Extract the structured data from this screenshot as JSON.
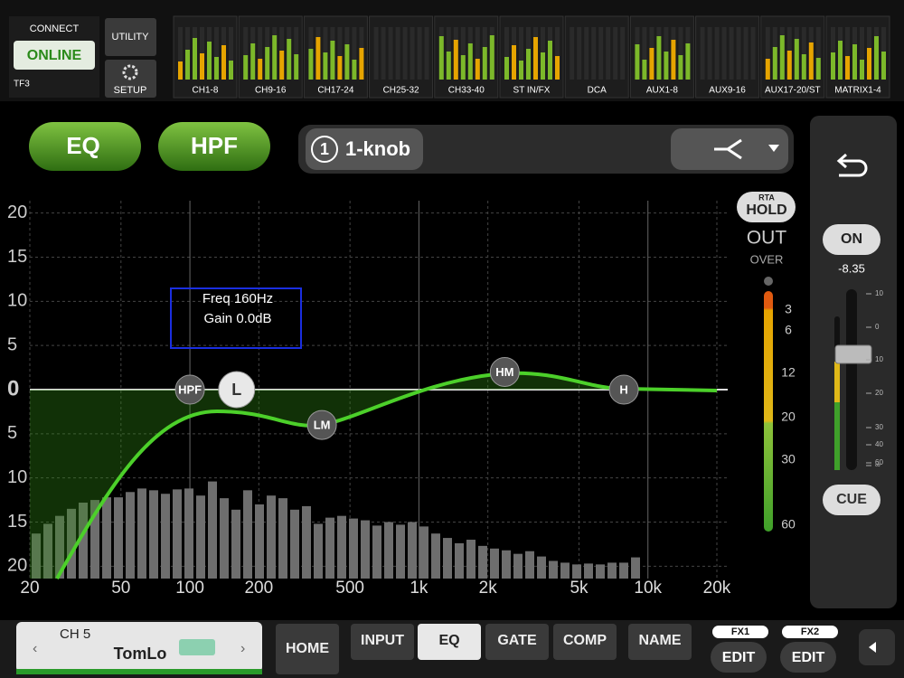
{
  "connect": {
    "label": "CONNECT",
    "status": "ONLINE",
    "device": "TF3"
  },
  "buttons": {
    "utility": "UTILITY",
    "setup": "SETUP"
  },
  "banks": [
    "CH1-8",
    "CH9-16",
    "CH17-24",
    "CH25-32",
    "CH33-40",
    "ST IN/FX",
    "DCA",
    "AUX1-8",
    "AUX9-16",
    "AUX17-20/ST",
    "MATRIX1-4"
  ],
  "toggles": {
    "eq": "EQ",
    "hpf": "HPF"
  },
  "mode": {
    "number": "1",
    "label": "1-knob"
  },
  "graph": {
    "xlim": [
      20,
      20000
    ],
    "ylim": [
      -21.4,
      21.4
    ],
    "xticks": [
      20,
      50,
      100,
      200,
      500,
      {
        "value": 1000,
        "label": "1k"
      },
      {
        "value": 2000,
        "label": "2k"
      },
      {
        "value": 5000,
        "label": "5k"
      },
      {
        "value": 10000,
        "label": "10k"
      },
      {
        "value": 20000,
        "label": "20k"
      }
    ],
    "yticks": [
      20,
      15,
      10,
      5,
      0,
      {
        "value": -5,
        "label": "5"
      },
      {
        "value": -10,
        "label": "10"
      },
      {
        "value": -15,
        "label": "15"
      },
      {
        "value": -20,
        "label": "20"
      }
    ],
    "bands": [
      {
        "name": "HPF",
        "freq": 100,
        "gain": 0
      },
      {
        "name": "L",
        "freq": 160,
        "gain": 0
      },
      {
        "name": "LM",
        "freq": 377,
        "gain": -4
      },
      {
        "name": "HM",
        "freq": 2370,
        "gain": 2
      },
      {
        "name": "H",
        "freq": 7850,
        "gain": 0
      }
    ],
    "readout": [
      "Freq  160Hz",
      "Gain  0.0dB"
    ],
    "rta": [
      -16.3,
      -15.2,
      -14.3,
      -13.5,
      -12.8,
      -12.5,
      -12.2,
      -12.2,
      -11.6,
      -11.2,
      -11.4,
      -11.8,
      -11.3,
      -11.2,
      -12.0,
      -10.4,
      -12.3,
      -13.6,
      -11.4,
      -13.0,
      -12.0,
      -12.3,
      -13.6,
      -13.2,
      -15.2,
      -14.5,
      -14.3,
      -14.6,
      -14.8,
      -15.4,
      -15.0,
      -15.3,
      -15.0,
      -15.5,
      -16.3,
      -16.8,
      -17.4,
      -17.0,
      -17.7,
      -18.0,
      -18.2,
      -18.6,
      -18.3,
      -18.9,
      -19.4,
      -19.6,
      -19.8,
      -19.7,
      -19.8,
      -19.6,
      -19.6,
      -19.0
    ]
  },
  "meter": {
    "rta": "RTA",
    "hold": "HOLD",
    "out": "OUT",
    "over": "OVER",
    "scale": [
      "3",
      "6",
      "12",
      "20",
      "30",
      "60"
    ]
  },
  "fader": {
    "on": "ON",
    "level": "-8.35",
    "scale": [
      "10",
      "0",
      "10",
      "20",
      "30",
      "40",
      "60",
      "∞"
    ],
    "cue": "CUE"
  },
  "channel": {
    "number": "CH 5",
    "name": "TomLo"
  },
  "tabs": [
    "HOME",
    "INPUT",
    "EQ",
    "GATE",
    "COMP",
    "NAME"
  ],
  "fx": [
    {
      "label": "FX1",
      "button": "EDIT"
    },
    {
      "label": "FX2",
      "button": "EDIT"
    }
  ]
}
